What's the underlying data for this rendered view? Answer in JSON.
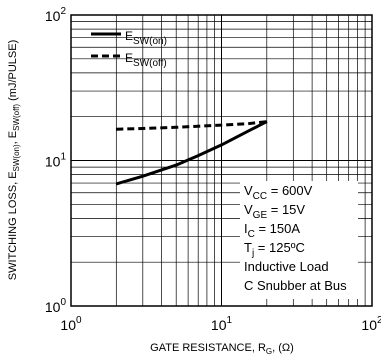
{
  "chart_data": {
    "type": "line",
    "xlabel": {
      "main": "GATE RESISTANCE, R",
      "sub": "G",
      "unit": ", (Ω)"
    },
    "ylabel": {
      "p1": "SWITCHING LOSS, E",
      "s1": "SW(on)",
      "p2": ", E",
      "s2": "SW(off)",
      "p3": " (mJ/PULSE)"
    },
    "x_scale": "log",
    "y_scale": "log",
    "xlim": [
      1,
      100
    ],
    "ylim": [
      1,
      100
    ],
    "x_ticks": [
      {
        "base": "10",
        "exp": "0",
        "value": 1
      },
      {
        "base": "10",
        "exp": "1",
        "value": 10
      },
      {
        "base": "10",
        "exp": "2",
        "value": 100
      }
    ],
    "y_ticks": [
      {
        "base": "10",
        "exp": "0",
        "value": 1
      },
      {
        "base": "10",
        "exp": "1",
        "value": 10
      },
      {
        "base": "10",
        "exp": "2",
        "value": 100
      }
    ],
    "grid": true,
    "legend_position": "top-left",
    "series": [
      {
        "name": {
          "main": "E",
          "sub": "SW(on)"
        },
        "style": "solid",
        "x": [
          2,
          3,
          5,
          7,
          10,
          15,
          20
        ],
        "y": [
          6.9,
          7.8,
          9.3,
          10.8,
          12.8,
          15.9,
          18.5
        ]
      },
      {
        "name": {
          "main": "E",
          "sub": "SW(off)"
        },
        "style": "dashed",
        "x": [
          2,
          3,
          5,
          7,
          10,
          15,
          20
        ],
        "y": [
          16.4,
          16.6,
          16.9,
          17.2,
          17.5,
          17.9,
          18.5
        ]
      }
    ],
    "conditions": [
      {
        "main": "V",
        "sub": "CC",
        "rest": " = 600V"
      },
      {
        "main": "V",
        "sub": "GE",
        "rest": " = 15V"
      },
      {
        "main": "I",
        "sub": "C",
        "rest": " = 150A"
      },
      {
        "main": "T",
        "sub": "j",
        "rest": " = 125ºC"
      },
      {
        "main": "Inductive Load",
        "sub": "",
        "rest": ""
      },
      {
        "main": "C Snubber at Bus",
        "sub": "",
        "rest": ""
      }
    ]
  }
}
